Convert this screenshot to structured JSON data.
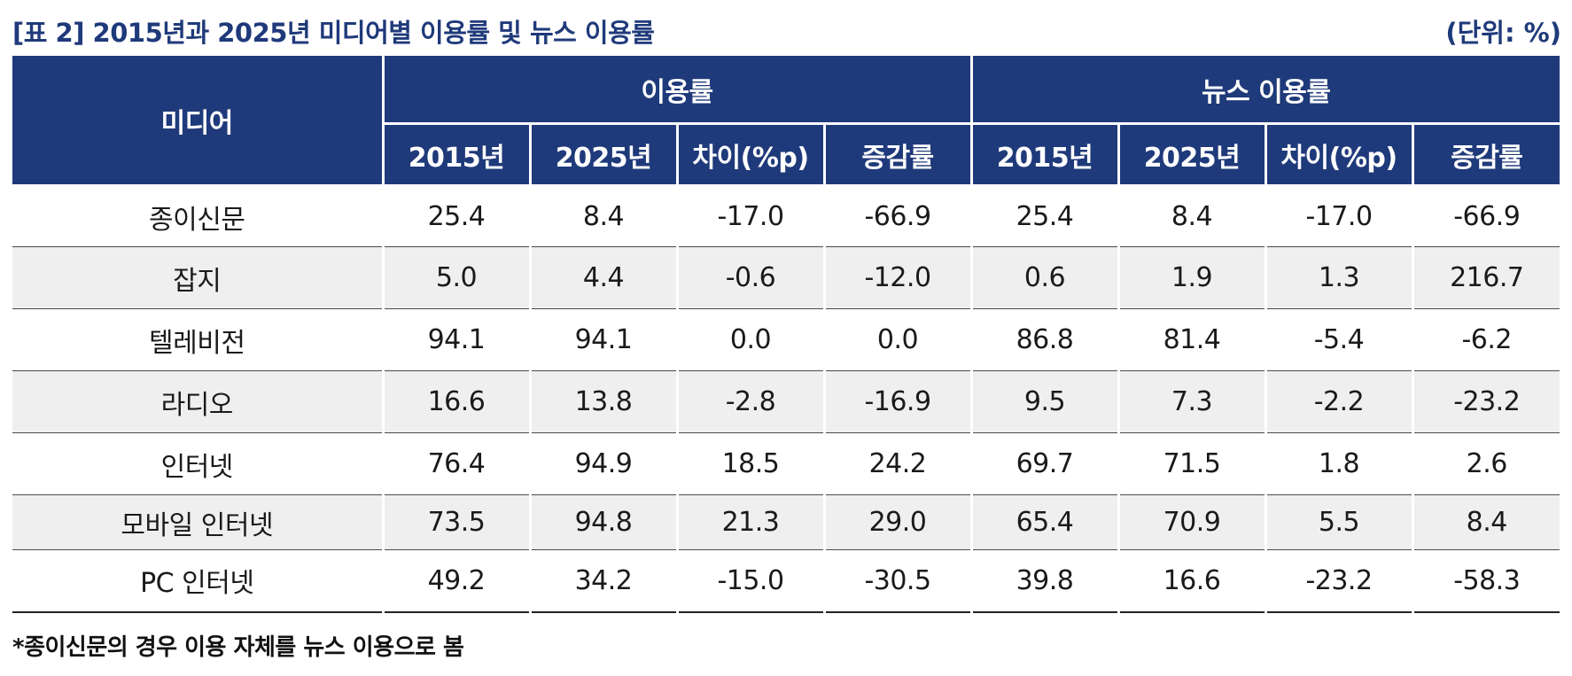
{
  "title": "[표 2] 2015년과 2025년 미디어별 이용률 및 뉴스 이용률",
  "unit": "(단위: %)",
  "header": {
    "media": "미디어",
    "group_usage": "이용률",
    "group_news": "뉴스 이용률",
    "sub": [
      "2015년",
      "2025년",
      "차이(%p)",
      "증감률",
      "2015년",
      "2025년",
      "차이(%p)",
      "증감률"
    ]
  },
  "rows": [
    {
      "media": "종이신문",
      "values": [
        "25.4",
        "8.4",
        "-17.0",
        "-66.9",
        "25.4",
        "8.4",
        "-17.0",
        "-66.9"
      ]
    },
    {
      "media": "잡지",
      "values": [
        "5.0",
        "4.4",
        "-0.6",
        "-12.0",
        "0.6",
        "1.9",
        "1.3",
        "216.7"
      ]
    },
    {
      "media": "텔레비전",
      "values": [
        "94.1",
        "94.1",
        "0.0",
        "0.0",
        "86.8",
        "81.4",
        "-5.4",
        "-6.2"
      ]
    },
    {
      "media": "라디오",
      "values": [
        "16.6",
        "13.8",
        "-2.8",
        "-16.9",
        "9.5",
        "7.3",
        "-2.2",
        "-23.2"
      ]
    },
    {
      "media": "인터넷",
      "values": [
        "76.4",
        "94.9",
        "18.5",
        "24.2",
        "69.7",
        "71.5",
        "1.8",
        "2.6"
      ]
    },
    {
      "media": "모바일 인터넷",
      "values": [
        "73.5",
        "94.8",
        "21.3",
        "29.0",
        "65.4",
        "70.9",
        "5.5",
        "8.4"
      ]
    },
    {
      "media": "PC 인터넷",
      "values": [
        "49.2",
        "34.2",
        "-15.0",
        "-30.5",
        "39.8",
        "16.6",
        "-23.2",
        "-58.3"
      ]
    }
  ],
  "footnote": "*종이신문의 경우 이용 자체를 뉴스 이용으로 봄",
  "colors": {
    "header_bg": "#1f3a7a",
    "title_text": "#1f3a7a",
    "alt_row_bg": "#efefef"
  }
}
